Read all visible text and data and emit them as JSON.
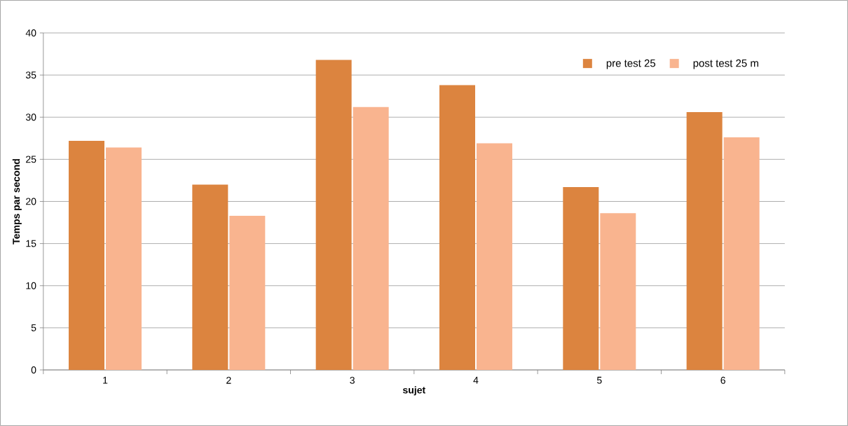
{
  "chart_data": {
    "type": "bar",
    "xlabel": "sujet",
    "ylabel": "Temps par second",
    "categories": [
      "1",
      "2",
      "3",
      "4",
      "5",
      "6"
    ],
    "series": [
      {
        "name": "pre test 25",
        "color": "#dc843f",
        "values": [
          27.2,
          22.0,
          36.8,
          33.8,
          21.7,
          30.6
        ]
      },
      {
        "name": "post test 25 m",
        "color": "#f9b48f",
        "values": [
          26.4,
          18.3,
          31.2,
          26.9,
          18.6,
          27.6
        ]
      }
    ],
    "ylim": [
      0,
      40
    ],
    "yticks": [
      0,
      5,
      10,
      15,
      20,
      25,
      30,
      35,
      40
    ],
    "grid": "y",
    "legend": "top right"
  }
}
